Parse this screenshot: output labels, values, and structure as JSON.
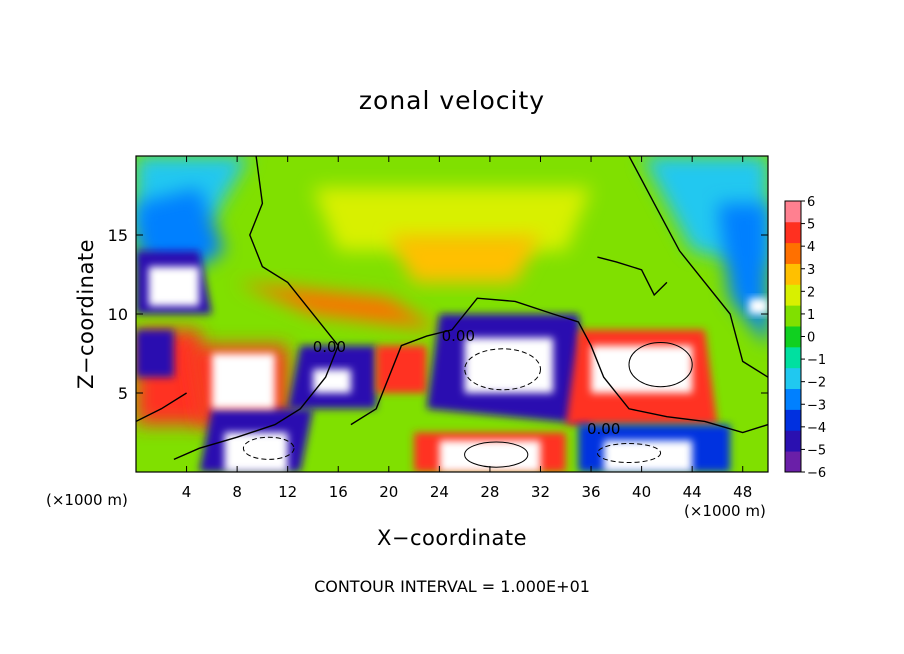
{
  "chart_data": {
    "type": "heatmap",
    "title": "zonal velocity",
    "xlabel": "X−coordinate",
    "ylabel": "Z−coordinate",
    "x_unit_label": "(×1000 m)",
    "xlim": [
      0,
      50
    ],
    "ylim": [
      0,
      20
    ],
    "x_ticks": [
      4,
      8,
      12,
      16,
      20,
      24,
      28,
      32,
      36,
      40,
      44,
      48
    ],
    "y_ticks": [
      5,
      10,
      15
    ],
    "colorbar": {
      "min": -6,
      "max": 6,
      "ticks": [
        "6",
        "5",
        "4",
        "3",
        "2",
        "1",
        "0",
        "−1",
        "−2",
        "−3",
        "−4",
        "−5",
        "−6"
      ],
      "colors": [
        "#6a1fa8",
        "#2a10b0",
        "#0030e0",
        "#0080ff",
        "#20c8f0",
        "#00e0a0",
        "#10d020",
        "#80e000",
        "#d8f000",
        "#ffc000",
        "#ff7000",
        "#ff3020",
        "#ff8090"
      ]
    },
    "contour_labels": [
      {
        "text": "0.00",
        "x": 15.3,
        "z": 7.6
      },
      {
        "text": "0.00",
        "x": 25.5,
        "z": 8.3
      },
      {
        "text": "0.00",
        "x": 37.0,
        "z": 2.4
      }
    ],
    "contour_interval_text": "CONTOUR INTERVAL = 1.000E+01",
    "saturated_color": "#ffffff"
  }
}
